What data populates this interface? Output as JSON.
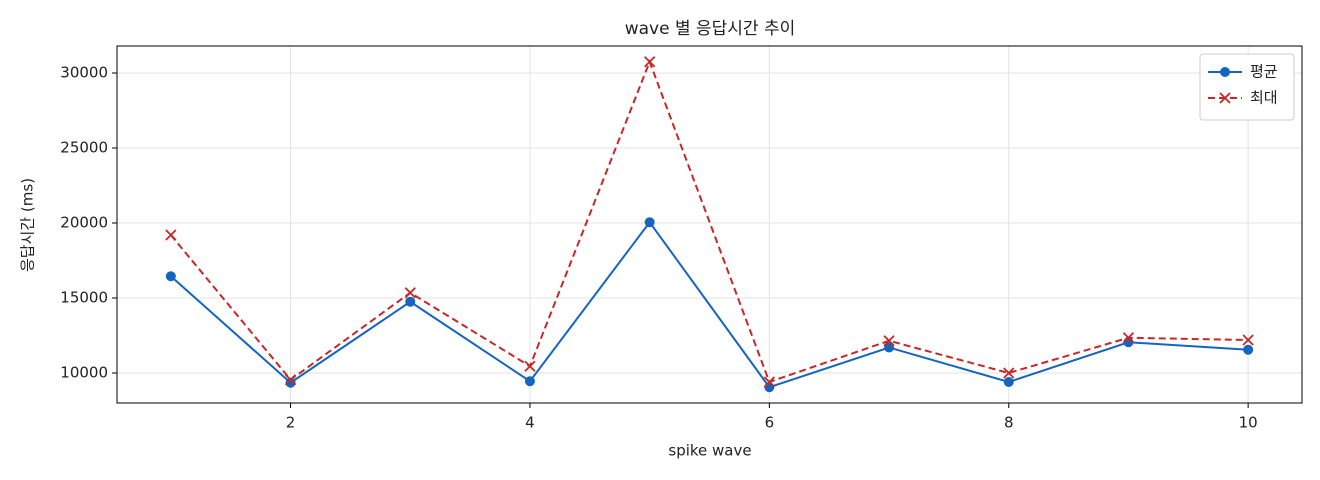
{
  "chart_data": {
    "type": "line",
    "title": "wave 별 응답시간 추이",
    "xlabel": "spike wave",
    "ylabel": "응답시간 (ms)",
    "x": [
      1,
      2,
      3,
      4,
      5,
      6,
      7,
      8,
      9,
      10
    ],
    "series": [
      {
        "name": "평균",
        "color": "#1565c0",
        "marker": "o",
        "linestyle": "solid",
        "values": [
          16450,
          9350,
          14750,
          9450,
          20050,
          9050,
          11700,
          9400,
          12050,
          11550
        ]
      },
      {
        "name": "최대",
        "color": "#c62828",
        "marker": "x",
        "linestyle": "dashed",
        "values": [
          19200,
          9550,
          15350,
          10450,
          30750,
          9400,
          12150,
          10000,
          12350,
          12200
        ]
      }
    ],
    "xlim": [
      0.55,
      10.45
    ],
    "xticks": [
      2,
      4,
      6,
      8,
      10
    ],
    "ylim": [
      8000,
      31800
    ],
    "yticks": [
      10000,
      15000,
      20000,
      25000,
      30000
    ],
    "grid": true,
    "legend": "upper right"
  }
}
